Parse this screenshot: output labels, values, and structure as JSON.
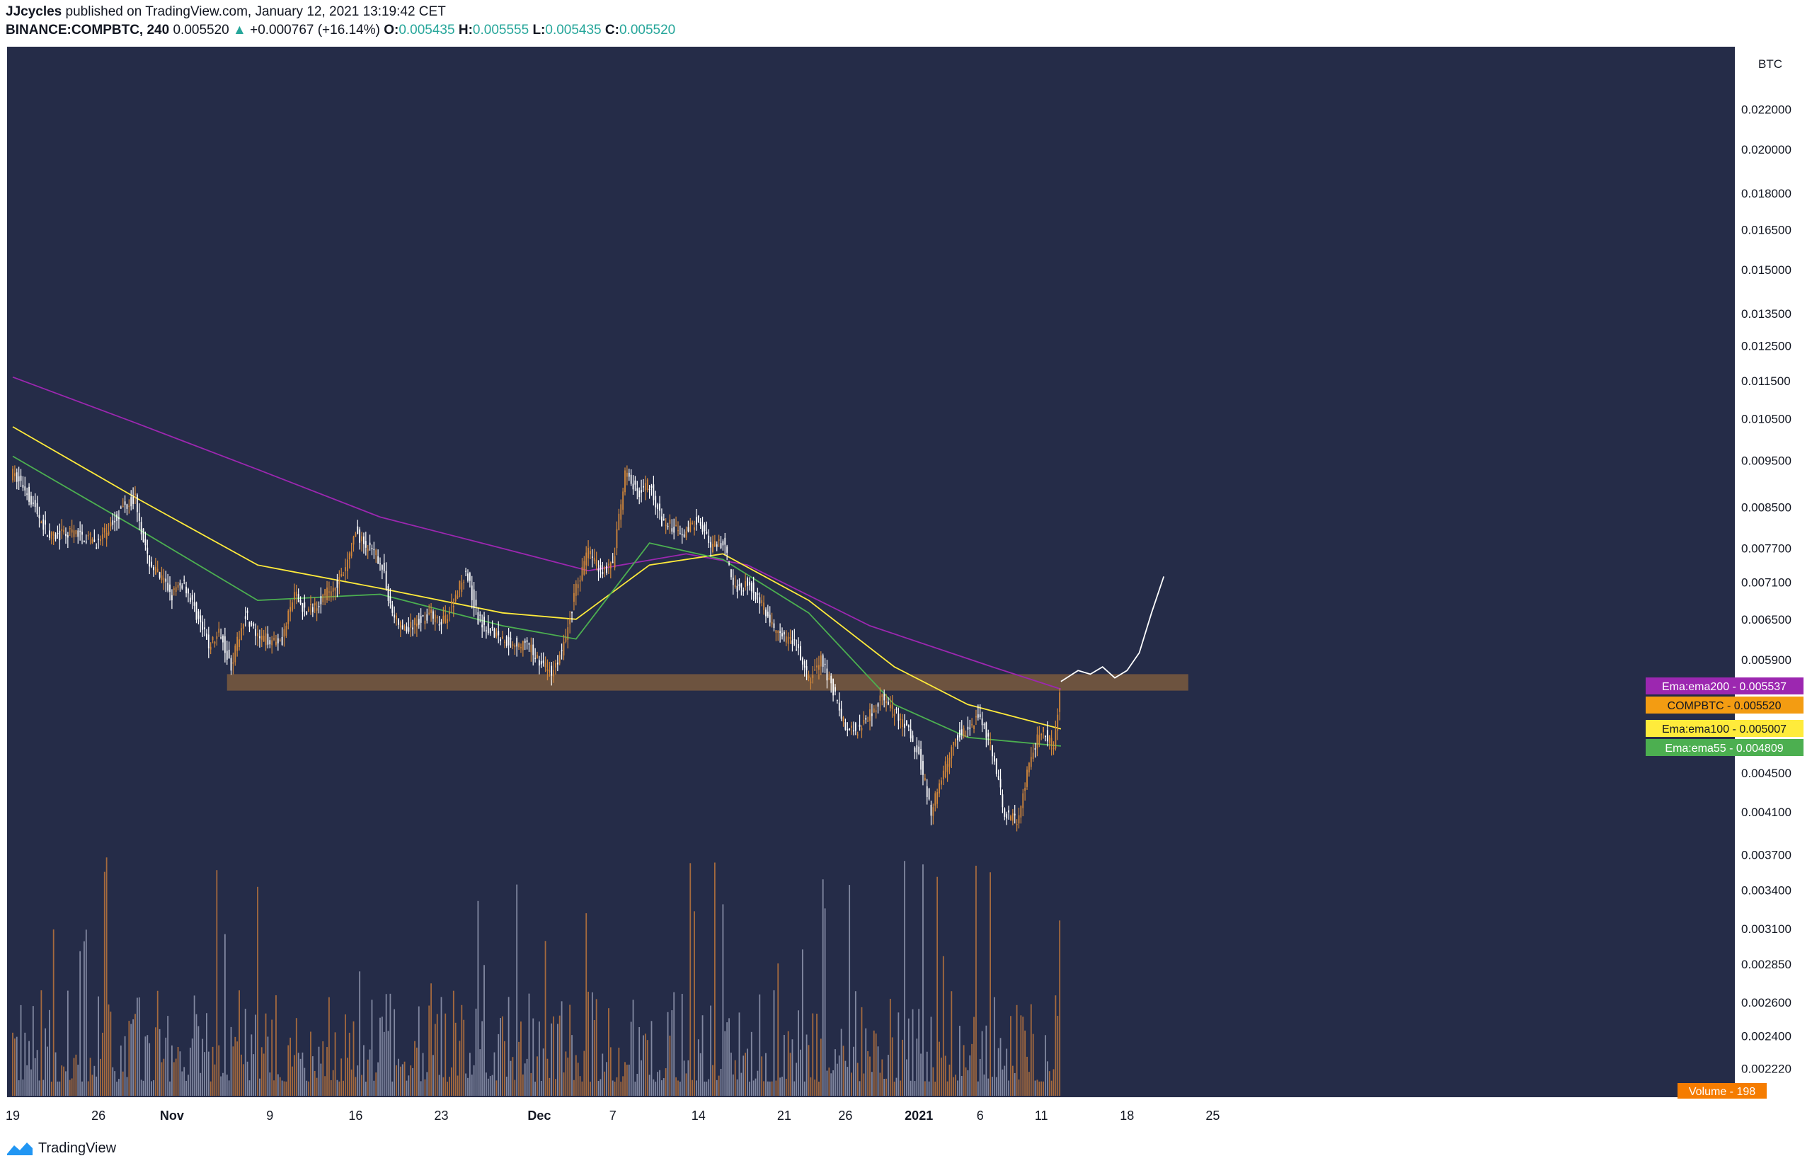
{
  "header": {
    "author": "JJcycles",
    "published_text": "published on TradingView.com, January 12, 2021 13:19:42 CET",
    "symbol": "BINANCE:COMPBTC, 240",
    "last": "0.005520",
    "change": "+0.000767 (+16.14%)",
    "o_label": "O:",
    "o": "0.005435",
    "h_label": "H:",
    "h": "0.005555",
    "l_label": "L:",
    "l": "0.005435",
    "c_label": "C:",
    "c": "0.005520"
  },
  "footer": {
    "brand": "TradingView",
    "icon": "tradingview-logo-icon"
  },
  "colors": {
    "background": "#252c48",
    "candle_up": "#d4883a",
    "candle_down": "#ffffff",
    "ema200": "#9c27b0",
    "ema100": "#ffeb3b",
    "ema55": "#4caf50",
    "zone": "#7a5a3e",
    "volume_up": "#c67a3c",
    "volume_down": "#9aa0b8"
  },
  "chart_data": {
    "type": "candlestick",
    "timeframe": "240",
    "currency_label": "BTC",
    "y_scale": "log",
    "y_ticks": [
      "0.022000",
      "0.020000",
      "0.018000",
      "0.016500",
      "0.015000",
      "0.013500",
      "0.012500",
      "0.011500",
      "0.010500",
      "0.009500",
      "0.008500",
      "0.007700",
      "0.007100",
      "0.006500",
      "0.005900",
      "0.004500",
      "0.004100",
      "0.003700",
      "0.003400",
      "0.003100",
      "0.002850",
      "0.002600",
      "0.002400",
      "0.002220"
    ],
    "y_tick_values": [
      0.022,
      0.02,
      0.018,
      0.0165,
      0.015,
      0.0135,
      0.0125,
      0.0115,
      0.0105,
      0.0095,
      0.0085,
      0.0077,
      0.0071,
      0.0065,
      0.0059,
      0.0045,
      0.0041,
      0.0037,
      0.0034,
      0.0031,
      0.00285,
      0.0026,
      0.0024,
      0.00222
    ],
    "x_ticks": [
      "19",
      "26",
      "Nov",
      "9",
      "16",
      "23",
      "Dec",
      "7",
      "14",
      "21",
      "26",
      "2021",
      "6",
      "11",
      "18",
      "25"
    ],
    "x_tick_days": [
      0,
      7,
      13,
      21,
      28,
      35,
      43,
      49,
      56,
      63,
      68,
      74,
      79,
      84,
      91,
      98
    ],
    "x_axis_days_from": "Oct 19 2020",
    "last_candle_day": 85.6,
    "price_path": [
      [
        0,
        0.0092
      ],
      [
        1,
        0.0089
      ],
      [
        3,
        0.0079
      ],
      [
        5,
        0.008
      ],
      [
        7,
        0.0078
      ],
      [
        9,
        0.0085
      ],
      [
        10,
        0.0087
      ],
      [
        11,
        0.0075
      ],
      [
        13,
        0.0069
      ],
      [
        14,
        0.0071
      ],
      [
        16,
        0.0061
      ],
      [
        17,
        0.0063
      ],
      [
        17.8,
        0.0058
      ],
      [
        19,
        0.0066
      ],
      [
        20,
        0.0062
      ],
      [
        22,
        0.0062
      ],
      [
        23,
        0.0069
      ],
      [
        24,
        0.0066
      ],
      [
        25,
        0.0068
      ],
      [
        27,
        0.0072
      ],
      [
        28,
        0.008
      ],
      [
        29,
        0.0077
      ],
      [
        30,
        0.0075
      ],
      [
        31,
        0.0066
      ],
      [
        32,
        0.0063
      ],
      [
        34,
        0.0066
      ],
      [
        35,
        0.0064
      ],
      [
        36,
        0.0068
      ],
      [
        37,
        0.0073
      ],
      [
        38,
        0.0065
      ],
      [
        40,
        0.0062
      ],
      [
        42,
        0.0061
      ],
      [
        43,
        0.0059
      ],
      [
        44,
        0.0057
      ],
      [
        45,
        0.0061
      ],
      [
        46,
        0.007
      ],
      [
        47,
        0.0077
      ],
      [
        48,
        0.0073
      ],
      [
        49,
        0.0074
      ],
      [
        50,
        0.0092
      ],
      [
        51,
        0.0088
      ],
      [
        52,
        0.009
      ],
      [
        53,
        0.0082
      ],
      [
        55,
        0.008
      ],
      [
        56,
        0.0083
      ],
      [
        57,
        0.0077
      ],
      [
        58,
        0.0078
      ],
      [
        59,
        0.007
      ],
      [
        60,
        0.0071
      ],
      [
        61,
        0.0068
      ],
      [
        62,
        0.0064
      ],
      [
        63,
        0.0062
      ],
      [
        64,
        0.0061
      ],
      [
        65,
        0.0056
      ],
      [
        66,
        0.0059
      ],
      [
        67,
        0.0055
      ],
      [
        68,
        0.005
      ],
      [
        69,
        0.005
      ],
      [
        70,
        0.0052
      ],
      [
        71,
        0.0054
      ],
      [
        72,
        0.0052
      ],
      [
        73,
        0.005
      ],
      [
        74,
        0.0047
      ],
      [
        75,
        0.0041
      ],
      [
        76,
        0.0045
      ],
      [
        77,
        0.0049
      ],
      [
        78,
        0.005
      ],
      [
        79,
        0.0052
      ],
      [
        80,
        0.0047
      ],
      [
        81,
        0.0041
      ],
      [
        82,
        0.004
      ],
      [
        83,
        0.0046
      ],
      [
        84,
        0.005
      ],
      [
        85,
        0.0048
      ],
      [
        85.6,
        0.00552
      ]
    ],
    "ema_lines": [
      {
        "label": "Ema:ema200",
        "value": "0.005537",
        "path": [
          [
            0,
            0.0116
          ],
          [
            10,
            0.0104
          ],
          [
            20,
            0.0093
          ],
          [
            30,
            0.0083
          ],
          [
            40,
            0.0077
          ],
          [
            47,
            0.0073
          ],
          [
            55,
            0.0076
          ],
          [
            60,
            0.0074
          ],
          [
            70,
            0.0064
          ],
          [
            80,
            0.0058
          ],
          [
            85.6,
            0.0055
          ]
        ]
      },
      {
        "label": "Ema:ema100",
        "value": "0.005007",
        "path": [
          [
            0,
            0.0103
          ],
          [
            10,
            0.0087
          ],
          [
            20,
            0.0074
          ],
          [
            30,
            0.007
          ],
          [
            40,
            0.0066
          ],
          [
            46,
            0.0065
          ],
          [
            52,
            0.0074
          ],
          [
            58,
            0.0076
          ],
          [
            65,
            0.0068
          ],
          [
            72,
            0.0058
          ],
          [
            78,
            0.0053
          ],
          [
            85.6,
            0.005
          ]
        ]
      },
      {
        "label": "Ema:ema55",
        "value": "0.004809",
        "path": [
          [
            0,
            0.0096
          ],
          [
            10,
            0.0081
          ],
          [
            20,
            0.0068
          ],
          [
            30,
            0.0069
          ],
          [
            40,
            0.0064
          ],
          [
            46,
            0.0062
          ],
          [
            52,
            0.0078
          ],
          [
            58,
            0.0075
          ],
          [
            65,
            0.0066
          ],
          [
            72,
            0.0053
          ],
          [
            78,
            0.0049
          ],
          [
            85.6,
            0.0048
          ]
        ]
      }
    ],
    "price_label": {
      "label": "COMPBTC",
      "value": "0.005520"
    },
    "zone": {
      "low": 0.00548,
      "high": 0.0057,
      "from_day": 17.5,
      "to_day": 96
    },
    "projection": [
      [
        85.6,
        0.0056
      ],
      [
        87,
        0.00575
      ],
      [
        88,
        0.0057
      ],
      [
        89,
        0.0058
      ],
      [
        90,
        0.00565
      ],
      [
        91,
        0.00575
      ],
      [
        92,
        0.006
      ],
      [
        93,
        0.0066
      ],
      [
        94,
        0.0072
      ]
    ],
    "volume": {
      "label": "Volume",
      "value": "198"
    }
  }
}
